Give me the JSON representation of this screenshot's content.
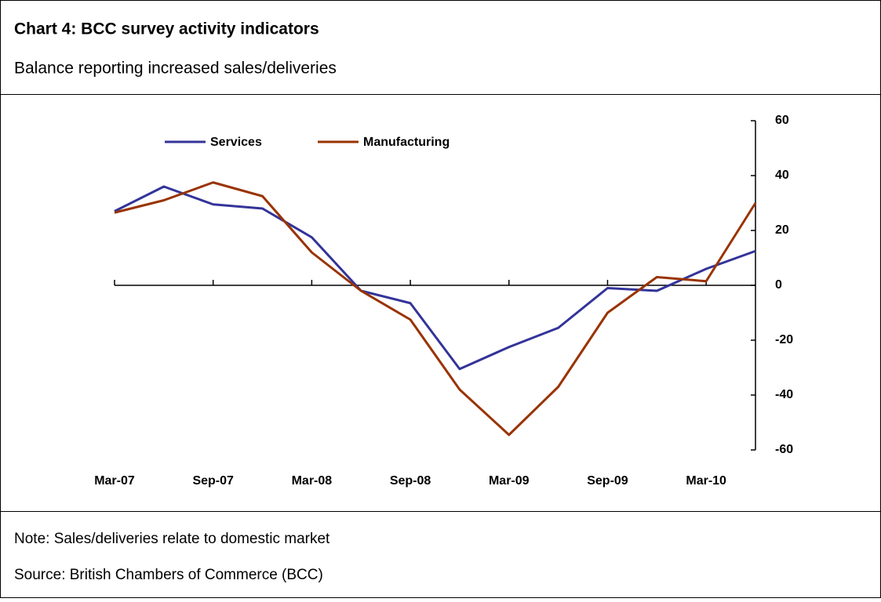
{
  "chart_data": {
    "type": "line",
    "title": "Chart 4: BCC survey activity indicators",
    "subtitle": "Balance reporting increased sales/deliveries",
    "categories": [
      "Mar-07",
      null,
      "Sep-07",
      null,
      "Mar-08",
      null,
      "Sep-08",
      null,
      "Mar-09",
      null,
      "Sep-09",
      null,
      "Mar-10",
      null
    ],
    "series": [
      {
        "name": "Services",
        "color": "#333399",
        "values": [
          27,
          36,
          29.5,
          28,
          17.5,
          -2,
          -6.5,
          -30.5,
          -22.5,
          -15.5,
          -1,
          -2,
          6,
          12.5
        ]
      },
      {
        "name": "Manufacturing",
        "color": "#993300",
        "values": [
          26.5,
          31,
          37.5,
          32.5,
          12,
          -2,
          -12.5,
          -38,
          -54.5,
          -37,
          -10,
          3,
          1.5,
          30
        ]
      }
    ],
    "ylim": [
      -60,
      60
    ],
    "yticks": [
      60,
      40,
      20,
      0,
      -20,
      -40,
      -60
    ],
    "y_axis_side": "right",
    "legend": "top"
  },
  "footer": [
    "Note: Sales/deliveries relate to domestic market",
    "Source: British Chambers of Commerce (BCC)"
  ]
}
